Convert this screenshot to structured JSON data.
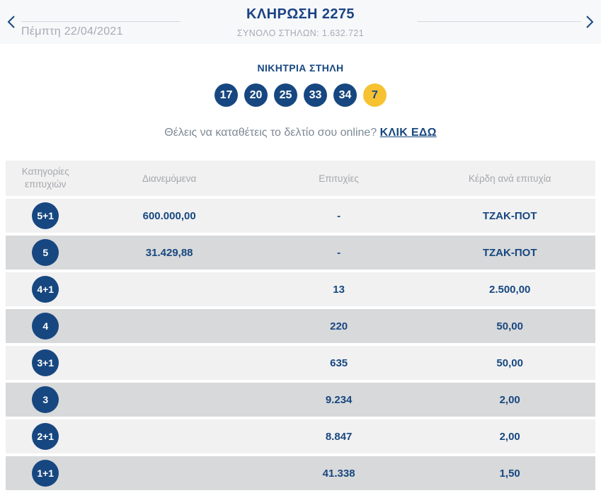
{
  "header": {
    "title": "ΚΛΗΡΩΣΗ 2275",
    "subtitle": "ΣΥΝΟΛΟ ΣΤΗΛΩΝ: 1.632.721",
    "date": "Πέμπτη 22/04/2021"
  },
  "winning": {
    "heading": "ΝΙΚΗΤΡΙΑ ΣΤΗΛΗ",
    "numbers": [
      "17",
      "20",
      "25",
      "33",
      "34"
    ],
    "joker": "7"
  },
  "online_prompt": {
    "text": "Θέλεις να καταθέτεις το δελτίο σου online? ",
    "link_label": "ΚΛΙΚ ΕΔΩ"
  },
  "table": {
    "headers": [
      "Κατηγορίες επιτυχιών",
      "Διανεμόμενα",
      "Επιτυχίες",
      "Κέρδη ανά επιτυχία"
    ],
    "rows": [
      {
        "category": "5+1",
        "distributed": "600.000,00",
        "winners": "-",
        "prize": "ΤΖΑΚ-ΠΟΤ"
      },
      {
        "category": "5",
        "distributed": "31.429,88",
        "winners": "-",
        "prize": "ΤΖΑΚ-ΠΟΤ"
      },
      {
        "category": "4+1",
        "distributed": "",
        "winners": "13",
        "prize": "2.500,00"
      },
      {
        "category": "4",
        "distributed": "",
        "winners": "220",
        "prize": "50,00"
      },
      {
        "category": "3+1",
        "distributed": "",
        "winners": "635",
        "prize": "50,00"
      },
      {
        "category": "3",
        "distributed": "",
        "winners": "9.234",
        "prize": "2,00"
      },
      {
        "category": "2+1",
        "distributed": "",
        "winners": "8.847",
        "prize": "2,00"
      },
      {
        "category": "1+1",
        "distributed": "",
        "winners": "41.338",
        "prize": "1,50"
      }
    ]
  },
  "colors": {
    "navy": "#174780",
    "joker_yellow": "#f7c231",
    "row_light": "#f1f1f2",
    "row_dark": "#d8d9da",
    "header_strip": "#f7f8fa",
    "muted_text": "#a4abb4"
  }
}
